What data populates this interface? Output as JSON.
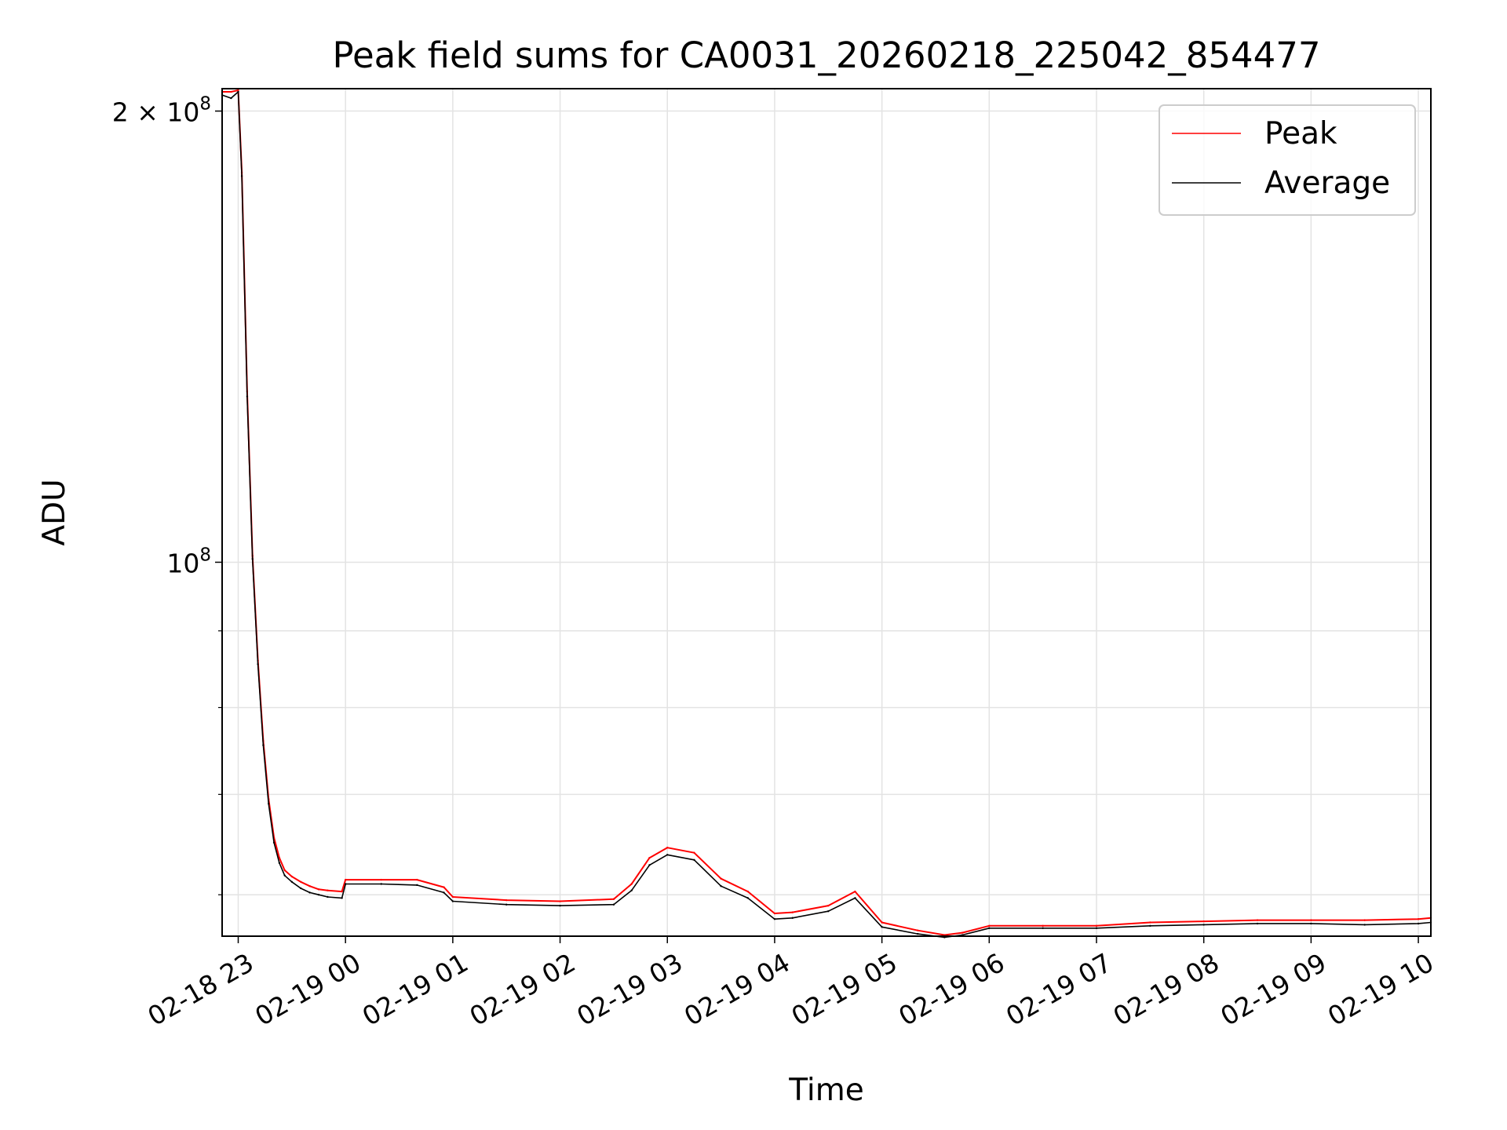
{
  "chart_data": {
    "type": "line",
    "title": "Peak field sums for CA0031_20260218_225042_854477",
    "xlabel": "Time",
    "ylabel": "ADU",
    "yscale": "log",
    "grid": true,
    "legend_position": "top-right",
    "xlim": [
      "2026-02-18 22:51",
      "2026-02-19 10:07"
    ],
    "ylim": [
      56300000,
      207000000
    ],
    "x_tick_labels": [
      "02-18 23",
      "02-19 00",
      "02-19 01",
      "02-19 02",
      "02-19 03",
      "02-19 04",
      "02-19 05",
      "02-19 06",
      "02-19 07",
      "02-19 08",
      "02-19 09",
      "02-19 10"
    ],
    "x_ticks": [
      "2026-02-18 23:00",
      "2026-02-19 00:00",
      "2026-02-19 01:00",
      "2026-02-19 02:00",
      "2026-02-19 03:00",
      "2026-02-19 04:00",
      "2026-02-19 05:00",
      "2026-02-19 06:00",
      "2026-02-19 07:00",
      "2026-02-19 08:00",
      "2026-02-19 09:00",
      "2026-02-19 10:00"
    ],
    "y_tick_labels": [
      {
        "value": 200000000,
        "mantissa": "2",
        "times": "×",
        "base": "10",
        "exp": "8"
      },
      {
        "value": 100000000,
        "mantissa": "",
        "times": "",
        "base": "10",
        "exp": "8"
      }
    ],
    "y_minor_ticks": [
      60000000,
      70000000,
      80000000,
      90000000
    ],
    "series": [
      {
        "name": "Peak",
        "color": "#ff0000",
        "x": [
          "2026-02-18 22:51",
          "2026-02-18 22:56",
          "2026-02-18 23:00",
          "2026-02-18 23:02",
          "2026-02-18 23:05",
          "2026-02-18 23:08",
          "2026-02-18 23:11",
          "2026-02-18 23:14",
          "2026-02-18 23:17",
          "2026-02-18 23:20",
          "2026-02-18 23:23",
          "2026-02-18 23:26",
          "2026-02-18 23:30",
          "2026-02-18 23:35",
          "2026-02-18 23:40",
          "2026-02-18 23:45",
          "2026-02-18 23:50",
          "2026-02-18 23:58",
          "2026-02-19 00:00",
          "2026-02-19 00:20",
          "2026-02-19 00:40",
          "2026-02-19 00:55",
          "2026-02-19 01:00",
          "2026-02-19 01:30",
          "2026-02-19 02:00",
          "2026-02-19 02:30",
          "2026-02-19 02:40",
          "2026-02-19 02:50",
          "2026-02-19 03:00",
          "2026-02-19 03:15",
          "2026-02-19 03:30",
          "2026-02-19 03:45",
          "2026-02-19 04:00",
          "2026-02-19 04:10",
          "2026-02-19 04:30",
          "2026-02-19 04:45",
          "2026-02-19 05:00",
          "2026-02-19 05:20",
          "2026-02-19 05:35",
          "2026-02-19 05:45",
          "2026-02-19 06:00",
          "2026-02-19 06:30",
          "2026-02-19 07:00",
          "2026-02-19 07:30",
          "2026-02-19 08:00",
          "2026-02-19 08:30",
          "2026-02-19 09:00",
          "2026-02-19 09:30",
          "2026-02-19 10:00",
          "2026-02-19 10:07"
        ],
        "y": [
          206000000,
          206000000,
          206500000,
          182000000,
          130000000,
          101000000,
          86000000,
          76000000,
          69500000,
          65500000,
          63500000,
          62300000,
          61700000,
          61200000,
          60800000,
          60500000,
          60400000,
          60300000,
          61400000,
          61400000,
          61400000,
          60700000,
          59800000,
          59500000,
          59400000,
          59600000,
          61000000,
          63500000,
          64500000,
          64000000,
          61500000,
          60300000,
          58300000,
          58400000,
          59000000,
          60300000,
          57500000,
          56800000,
          56400000,
          56600000,
          57200000,
          57200000,
          57200000,
          57500000,
          57600000,
          57700000,
          57700000,
          57700000,
          57800000,
          57900000
        ]
      },
      {
        "name": "Average",
        "color": "#000000",
        "x": [
          "2026-02-18 22:51",
          "2026-02-18 22:56",
          "2026-02-18 23:00",
          "2026-02-18 23:02",
          "2026-02-18 23:05",
          "2026-02-18 23:08",
          "2026-02-18 23:11",
          "2026-02-18 23:14",
          "2026-02-18 23:17",
          "2026-02-18 23:20",
          "2026-02-18 23:23",
          "2026-02-18 23:26",
          "2026-02-18 23:30",
          "2026-02-18 23:35",
          "2026-02-18 23:40",
          "2026-02-18 23:45",
          "2026-02-18 23:50",
          "2026-02-18 23:58",
          "2026-02-19 00:00",
          "2026-02-19 00:20",
          "2026-02-19 00:40",
          "2026-02-19 00:55",
          "2026-02-19 01:00",
          "2026-02-19 01:30",
          "2026-02-19 02:00",
          "2026-02-19 02:30",
          "2026-02-19 02:40",
          "2026-02-19 02:50",
          "2026-02-19 03:00",
          "2026-02-19 03:15",
          "2026-02-19 03:30",
          "2026-02-19 03:45",
          "2026-02-19 04:00",
          "2026-02-19 04:10",
          "2026-02-19 04:30",
          "2026-02-19 04:45",
          "2026-02-19 05:00",
          "2026-02-19 05:20",
          "2026-02-19 05:35",
          "2026-02-19 05:45",
          "2026-02-19 06:00",
          "2026-02-19 06:30",
          "2026-02-19 07:00",
          "2026-02-19 07:30",
          "2026-02-19 08:00",
          "2026-02-19 08:30",
          "2026-02-19 09:00",
          "2026-02-19 09:30",
          "2026-02-19 10:00",
          "2026-02-19 10:07"
        ],
        "y": [
          205000000,
          204000000,
          206000000,
          181000000,
          129000000,
          100500000,
          85500000,
          75500000,
          69000000,
          65000000,
          63000000,
          61800000,
          61200000,
          60600000,
          60200000,
          60000000,
          59800000,
          59700000,
          61000000,
          61000000,
          60900000,
          60200000,
          59400000,
          59100000,
          59000000,
          59100000,
          60400000,
          62800000,
          63800000,
          63300000,
          60800000,
          59700000,
          57800000,
          57900000,
          58500000,
          59700000,
          57100000,
          56500000,
          56200000,
          56400000,
          57000000,
          57000000,
          57000000,
          57200000,
          57300000,
          57400000,
          57400000,
          57300000,
          57400000,
          57500000
        ]
      }
    ]
  }
}
